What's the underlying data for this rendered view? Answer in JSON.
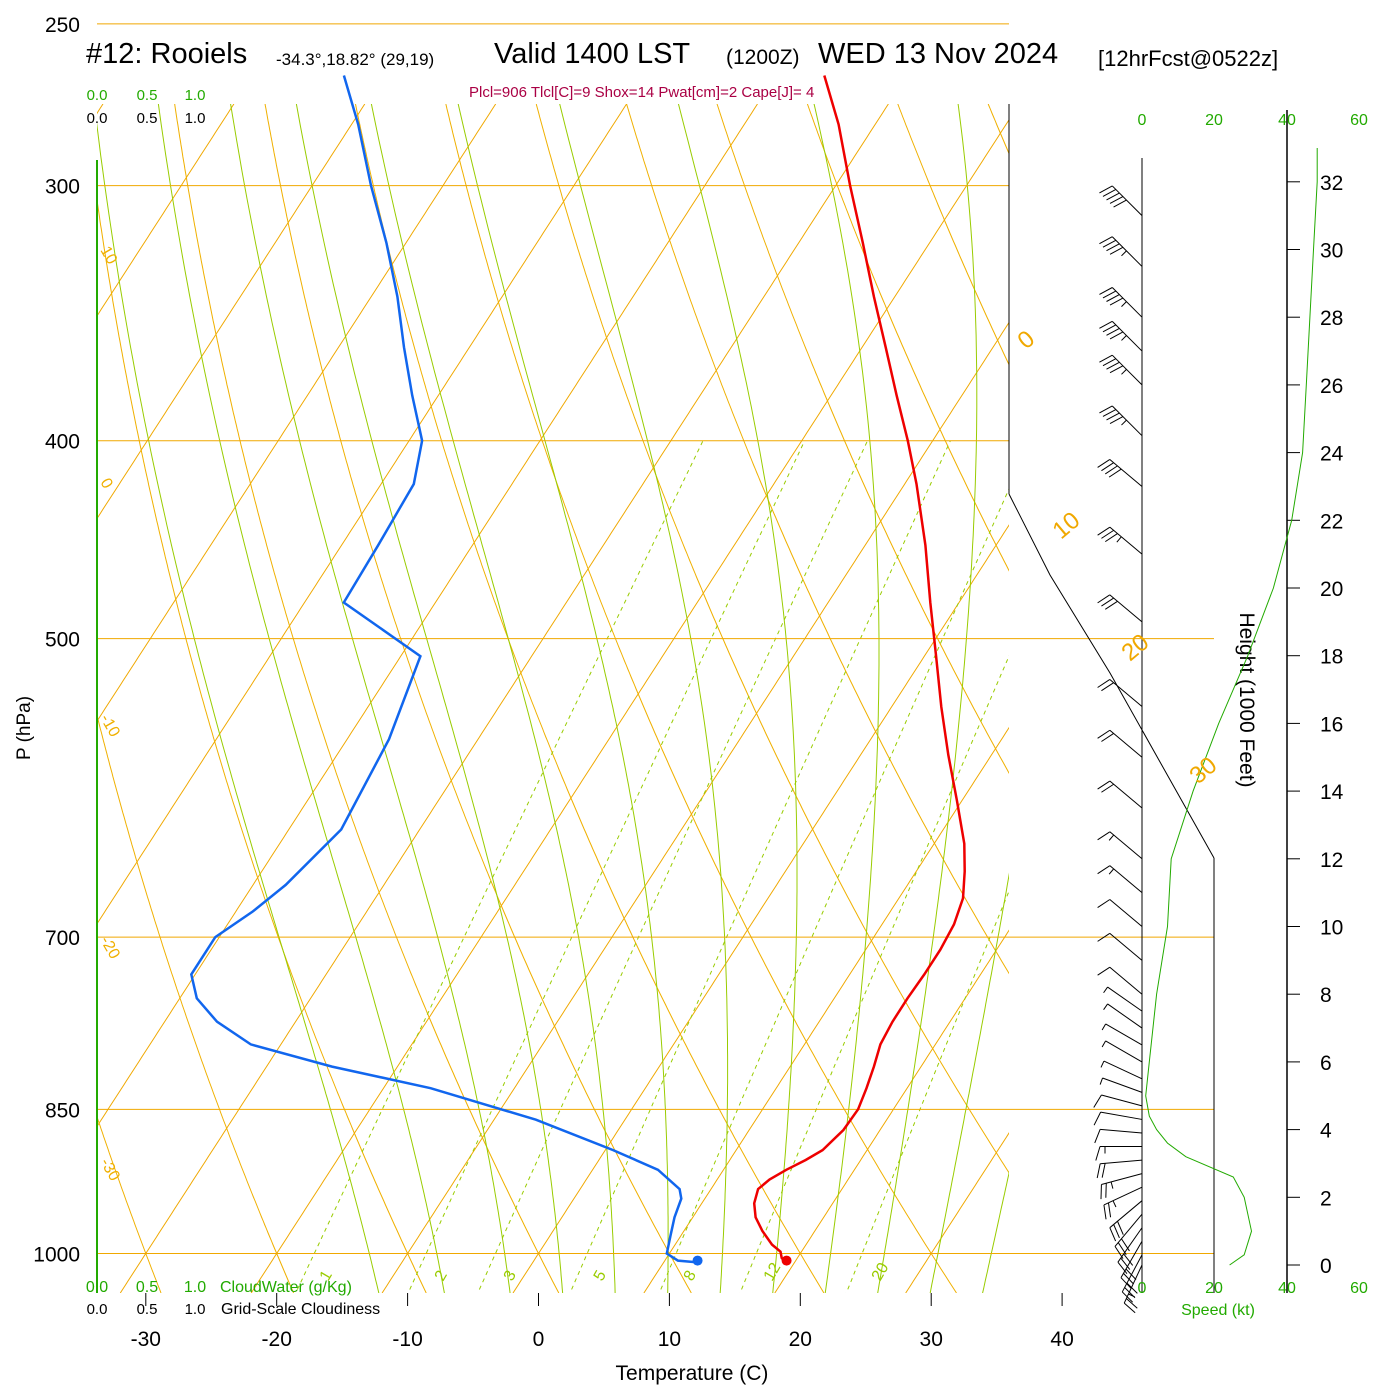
{
  "header": {
    "station": "#12: Rooiels",
    "coords": "-34.3°,18.82° (29,19)",
    "valid": "Valid 1400 LST",
    "zulu": "(1200Z)",
    "date": "WED 13 Nov 2024",
    "fcst": "[12hrFcst@0522z]",
    "indices": "Plcl=906 Tlcl[C]=9 Shox=14 Pwat[cm]=2 Cape[J]= 4"
  },
  "colors": {
    "temperature": "#ee0000",
    "dewpoint": "#1166ee",
    "isobar": "#f0a800",
    "dry_adiabat": "#f0b000",
    "moist_adiabat": "#99cc00",
    "mixing_ratio": "#99cc00",
    "scale_green": "#22aa00",
    "title_magenta": "#aa0044"
  },
  "chart_data": {
    "type": "skew-t",
    "xlabel": "Temperature (C)",
    "ylabel": "P (hPa)",
    "right_ylabel": "Height (1000 Feet)",
    "x_ticks": [
      -30,
      -20,
      -10,
      0,
      10,
      20,
      30,
      40
    ],
    "p_ticks": [
      250,
      300,
      400,
      500,
      700,
      850,
      1000
    ],
    "height_ticks": [
      0,
      2,
      4,
      6,
      8,
      10,
      12,
      14,
      16,
      18,
      20,
      22,
      24,
      26,
      28,
      30,
      32
    ],
    "cloud_scale_labels": [
      "0.0",
      "0.5",
      "1.0"
    ],
    "cloudwater_label": "CloudWater (g/Kg)",
    "cloudiness_label": "Grid-Scale Cloudiness",
    "speed_label": "Speed (kt)",
    "speed_ticks": [
      "0",
      "20",
      "40",
      "60"
    ],
    "dry_adiabat_labels": [
      "10",
      "0",
      "-10",
      "-20",
      "-30"
    ],
    "upper_isotherm_labels": [
      "0",
      "10",
      "20",
      "30"
    ],
    "mixing_ratio_labels": [
      "1",
      "2",
      "3",
      "5",
      "8",
      "12",
      "20"
    ],
    "temperature": {
      "pressure": [
        1010,
        1005,
        998,
        990,
        975,
        960,
        945,
        930,
        920,
        910,
        900,
        890,
        870,
        850,
        830,
        810,
        790,
        770,
        750,
        730,
        710,
        690,
        670,
        650,
        630,
        600,
        570,
        540,
        510,
        480,
        450,
        420,
        400,
        380,
        360,
        340,
        320,
        300,
        280,
        265
      ],
      "temp": [
        19.3,
        18.8,
        18.4,
        17.4,
        16.0,
        14.8,
        14.0,
        13.6,
        14.0,
        14.8,
        15.8,
        16.6,
        17.2,
        17.3,
        16.9,
        16.4,
        15.8,
        15.6,
        15.6,
        15.7,
        15.7,
        15.5,
        14.9,
        13.7,
        12.3,
        9.6,
        6.7,
        3.8,
        0.9,
        -2.2,
        -5.4,
        -9.1,
        -11.9,
        -15.0,
        -18.2,
        -21.6,
        -25.1,
        -28.9,
        -32.8,
        -36.3
      ]
    },
    "dewpoint": {
      "pressure": [
        1010,
        1008,
        1000,
        980,
        960,
        940,
        930,
        910,
        890,
        860,
        830,
        810,
        790,
        770,
        750,
        730,
        700,
        680,
        660,
        620,
        560,
        510,
        480,
        450,
        420,
        400,
        380,
        360,
        340,
        320,
        300,
        280,
        265
      ],
      "dewpt": [
        12.5,
        11.0,
        9.8,
        9.2,
        8.6,
        8.2,
        7.6,
        5.0,
        0.6,
        -6.8,
        -16.4,
        -25.0,
        -32.3,
        -36.0,
        -38.7,
        -40.3,
        -40.3,
        -38.7,
        -37.5,
        -36.0,
        -36.8,
        -38.5,
        -47.0,
        -47.2,
        -47.5,
        -49.0,
        -52.0,
        -55.0,
        -58.0,
        -61.5,
        -65.5,
        -69.5,
        -73.0
      ]
    },
    "parcel_surface": {
      "temp": 19.3,
      "dewpt": 12.5
    },
    "wind_speed_profile": {
      "height_kft": [
        0.0,
        0.3,
        1.0,
        2.0,
        2.6,
        3.2,
        3.6,
        4.0,
        4.4,
        5.0,
        6.0,
        8.0,
        10.0,
        12.0,
        14.0,
        16.0,
        18.0,
        20.0,
        22.0,
        24.0,
        26.0,
        28.0,
        30.0,
        32.0,
        33.0
      ],
      "speed_kt": [
        24,
        28,
        30,
        28,
        25,
        12,
        7,
        4,
        2,
        1,
        2,
        4,
        7,
        8,
        14,
        21,
        29,
        36,
        41,
        44,
        45,
        46,
        47,
        48,
        48
      ]
    },
    "wind_barbs": {
      "height_kft": [
        0.0,
        0.3,
        0.7,
        1.1,
        1.5,
        1.9,
        2.3,
        2.7,
        3.1,
        3.5,
        3.9,
        4.3,
        4.7,
        5.1,
        5.5,
        6.0,
        6.5,
        7.0,
        7.5,
        8.0,
        9.0,
        10.0,
        11.0,
        12.0,
        13.5,
        15.0,
        16.5,
        19.0,
        21.0,
        23.0,
        24.5,
        26.0,
        27.0,
        28.0,
        29.5,
        31.0
      ],
      "dir_deg": [
        335,
        332,
        330,
        325,
        320,
        310,
        295,
        285,
        275,
        270,
        265,
        260,
        255,
        250,
        245,
        240,
        240,
        235,
        235,
        230,
        230,
        230,
        230,
        230,
        230,
        230,
        230,
        230,
        230,
        230,
        225,
        225,
        225,
        225,
        225,
        225
      ],
      "speed_kt": [
        24,
        28,
        30,
        30,
        29,
        28,
        27,
        25,
        20,
        15,
        12,
        10,
        8,
        6,
        5,
        5,
        5,
        6,
        7,
        8,
        10,
        12,
        14,
        16,
        18,
        20,
        22,
        28,
        35,
        40,
        43,
        45,
        46,
        46,
        47,
        48
      ]
    }
  }
}
